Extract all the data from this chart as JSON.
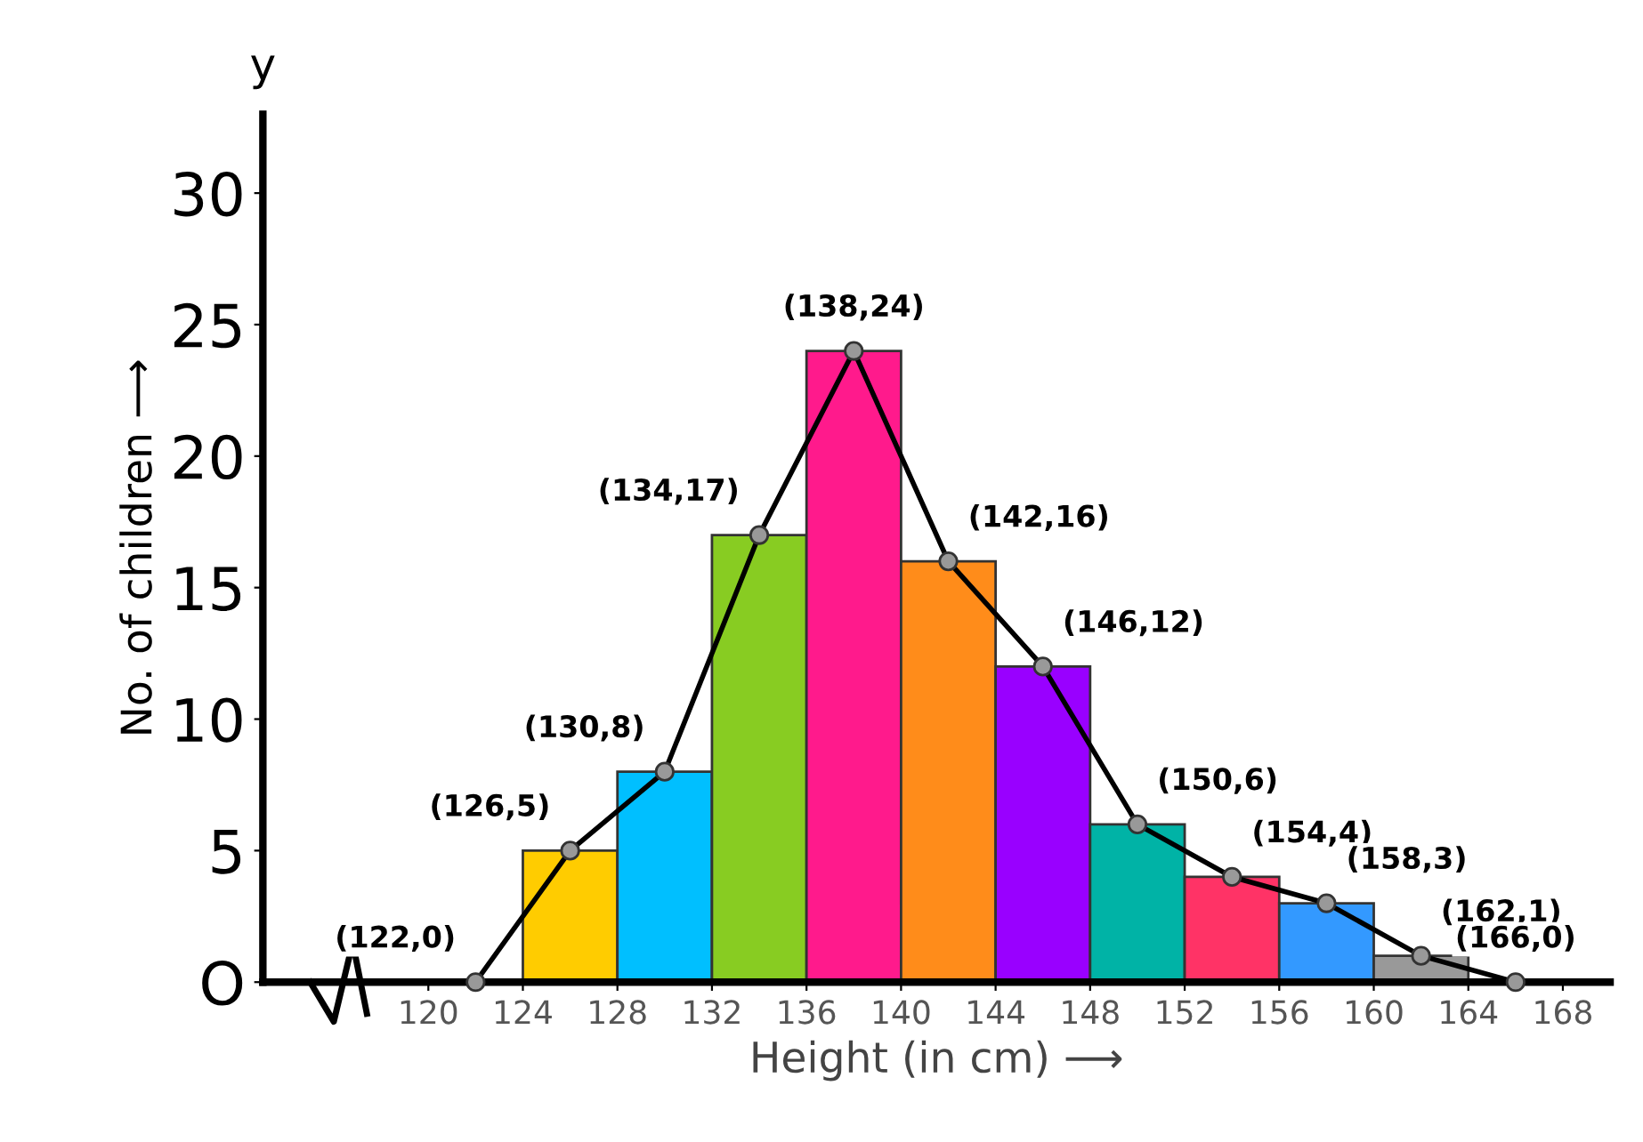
{
  "chart_data": {
    "type": "histogram",
    "xlabel": "Height (in cm) ⟶",
    "ylabel": "No. of children ⟶",
    "bins": [
      124,
      128,
      132,
      136,
      140,
      144,
      148,
      152,
      156,
      160,
      164
    ],
    "values": [
      5,
      8,
      17,
      24,
      16,
      12,
      6,
      4,
      3,
      1
    ],
    "colors": [
      "#ffcc00",
      "#00bfff",
      "#88cc22",
      "#ff1a8c",
      "#ff8c1a",
      "#9900ff",
      "#00b3a6",
      "#ff3366",
      "#3399ff",
      "#999999"
    ],
    "series": [
      {
        "type": "line",
        "x": [
          122,
          126,
          130,
          134,
          138,
          142,
          146,
          150,
          154,
          158,
          162,
          166
        ],
        "values": [
          0,
          5,
          8,
          17,
          24,
          16,
          12,
          6,
          4,
          3,
          1,
          0
        ],
        "color": "#000000"
      }
    ],
    "marker": "circle",
    "line_style": "solid",
    "grid": false,
    "legend": false,
    "xlim": [
      113,
      170
    ],
    "ylim": [
      0,
      33
    ],
    "xticks": [
      120,
      124,
      128,
      132,
      136,
      140,
      144,
      148,
      152,
      156,
      160,
      164,
      168
    ],
    "yticks": [
      {
        "value": 0,
        "label": "O"
      },
      5,
      10,
      15,
      20,
      25,
      30
    ],
    "annotations": [
      "y",
      {
        "text": "(122,0)",
        "x": 122,
        "y": 0
      },
      {
        "text": "(126,5)",
        "x": 126,
        "y": 5
      },
      {
        "text": "(130,8)",
        "x": 130,
        "y": 8
      },
      {
        "text": "(134,17)",
        "x": 134,
        "y": 17
      },
      {
        "text": "(138,24)",
        "x": 138,
        "y": 24
      },
      {
        "text": "(142,16)",
        "x": 142,
        "y": 16
      },
      {
        "text": "(146,12)",
        "x": 146,
        "y": 12
      },
      {
        "text": "(150,6)",
        "x": 150,
        "y": 6
      },
      {
        "text": "(154,4)",
        "x": 154,
        "y": 4
      },
      {
        "text": "(158,3)",
        "x": 158,
        "y": 3
      },
      {
        "text": "(162,1)",
        "x": 162,
        "y": 1
      },
      {
        "text": "(166,0)",
        "x": 166,
        "y": 0
      }
    ]
  }
}
